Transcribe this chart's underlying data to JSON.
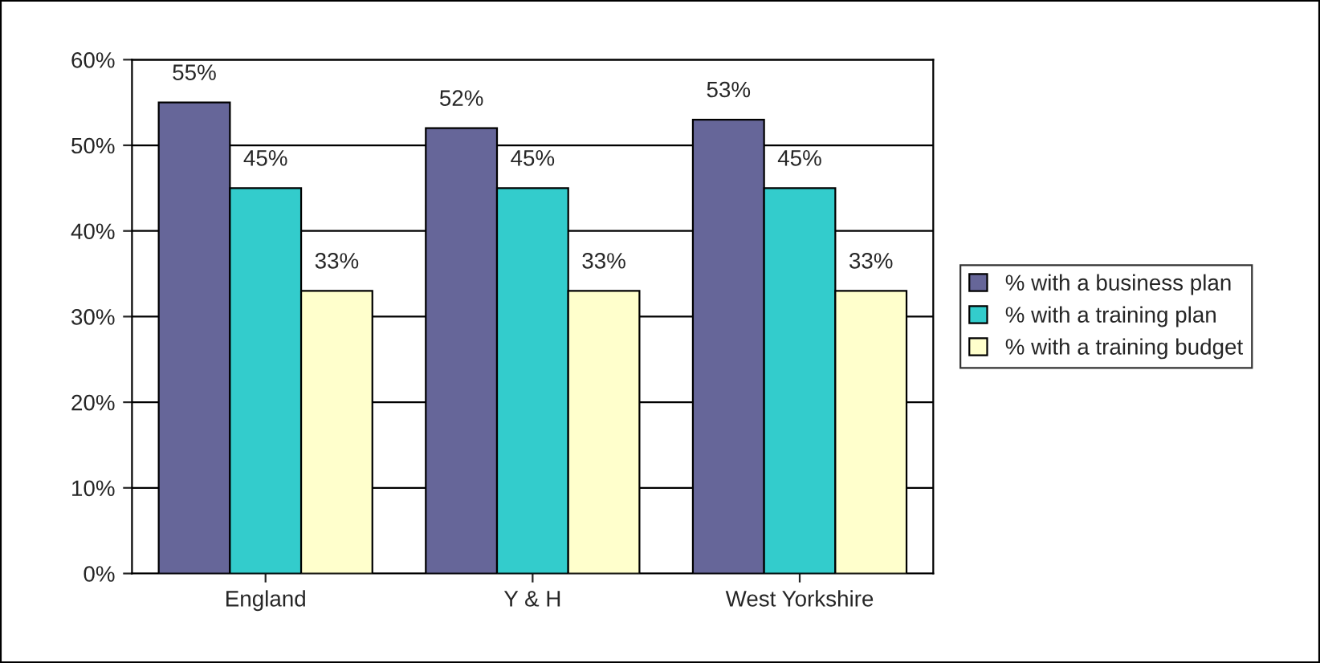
{
  "chart_data": {
    "type": "bar",
    "categories": [
      "England",
      "Y & H",
      "West Yorkshire"
    ],
    "series": [
      {
        "name": "% with a business plan",
        "color": "#666699",
        "values": [
          55,
          52,
          53
        ],
        "value_labels": [
          "55%",
          "52%",
          "53%"
        ]
      },
      {
        "name": "% with a training plan",
        "color": "#33cccc",
        "values": [
          45,
          45,
          45
        ],
        "value_labels": [
          "45%",
          "45%",
          "45%"
        ]
      },
      {
        "name": "% with a training budget",
        "color": "#ffffcc",
        "values": [
          33,
          33,
          33
        ],
        "value_labels": [
          "33%",
          "33%",
          "33%"
        ]
      }
    ],
    "ylim": [
      0,
      60
    ],
    "yticks": [
      {
        "value": 0,
        "label": "0%"
      },
      {
        "value": 10,
        "label": "10%"
      },
      {
        "value": 20,
        "label": "20%"
      },
      {
        "value": 30,
        "label": "30%"
      },
      {
        "value": 40,
        "label": "40%"
      },
      {
        "value": 50,
        "label": "50%"
      },
      {
        "value": 60,
        "label": "60%"
      }
    ],
    "grid": "y",
    "legend": "right"
  }
}
